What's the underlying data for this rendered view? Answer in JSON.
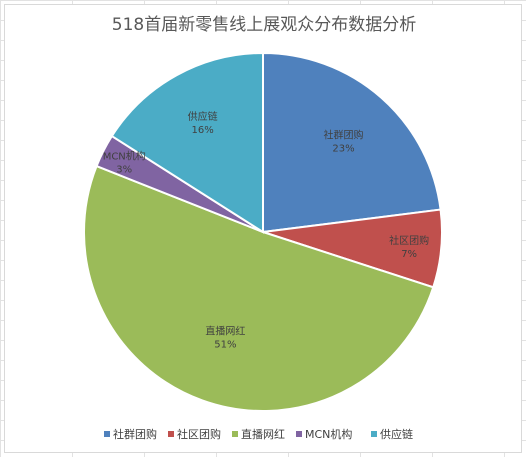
{
  "chart_data": {
    "type": "pie",
    "title": "518首届新零售线上展观众分布数据分析",
    "categories": [
      "社群团购",
      "社区团购",
      "直播网红",
      "MCN机构",
      "供应链"
    ],
    "values": [
      23,
      7,
      51,
      3,
      16
    ],
    "value_labels": [
      "23%",
      "7%",
      "51%",
      "3%",
      "16%"
    ],
    "colors": [
      "#4f81bd",
      "#c0504d",
      "#9bbb59",
      "#8064a2",
      "#4bacc6"
    ],
    "legend_position": "bottom"
  }
}
